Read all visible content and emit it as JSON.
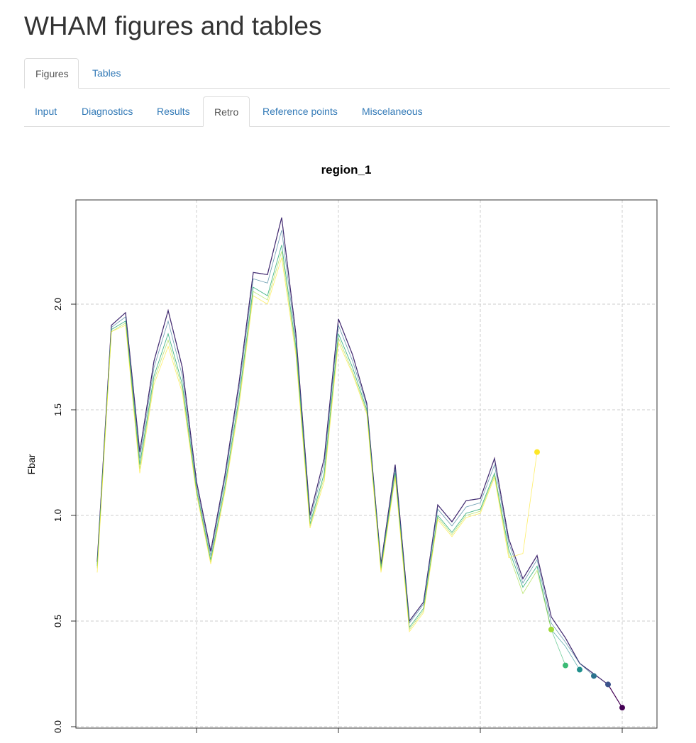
{
  "header": {
    "title": "WHAM figures and tables"
  },
  "tabs": [
    "Figures",
    "Tables"
  ],
  "subtabs": [
    "Input",
    "Diagnostics",
    "Results",
    "Retro",
    "Reference points",
    "Miscelaneous"
  ],
  "chart_data": {
    "type": "line",
    "title": "region_1",
    "ylabel": "Fbar",
    "categories": [
      null,
      null,
      null,
      null,
      null,
      null,
      null,
      null,
      null,
      null,
      null,
      null,
      null,
      null,
      null,
      null,
      null,
      null,
      null,
      null,
      null,
      null,
      null,
      null,
      null,
      null,
      null,
      null,
      null,
      null,
      null,
      null,
      null,
      null,
      null,
      null,
      null,
      null
    ],
    "ylim": [
      0,
      2.49
    ],
    "yticks": [
      {
        "value": 0,
        "label": "0.0"
      },
      0.5,
      {
        "value": 1,
        "label": "1.0"
      },
      1.5,
      {
        "value": 2,
        "label": "2.0"
      }
    ],
    "grid": true,
    "series": [
      {
        "color": "#440154",
        "values": [
          0.78,
          1.9,
          1.96,
          1.3,
          1.73,
          1.97,
          1.7,
          1.16,
          0.83,
          1.19,
          1.63,
          2.15,
          2.14,
          2.41,
          1.86,
          1.0,
          1.27,
          1.93,
          1.76,
          1.53,
          0.77,
          1.24,
          0.5,
          0.59,
          1.05,
          0.97,
          1.07,
          1.08,
          1.27,
          0.89,
          0.7,
          0.81,
          0.52,
          0.42,
          0.3,
          0.25,
          0.2,
          0.09
        ]
      },
      {
        "color": "#3b528b",
        "values": [
          0.78,
          1.9,
          1.96,
          1.3,
          1.73,
          1.97,
          1.7,
          1.16,
          0.83,
          1.19,
          1.63,
          2.15,
          2.14,
          2.41,
          1.86,
          1.0,
          1.27,
          1.93,
          1.76,
          1.53,
          0.77,
          1.24,
          0.5,
          0.59,
          1.05,
          0.97,
          1.07,
          1.08,
          1.27,
          0.89,
          0.7,
          0.81,
          0.52,
          0.42,
          0.3,
          0.25,
          0.2,
          null
        ]
      },
      {
        "color": "#2c728e",
        "values": [
          0.77,
          1.89,
          1.94,
          1.27,
          1.7,
          1.92,
          1.66,
          1.14,
          0.81,
          1.17,
          1.6,
          2.12,
          2.1,
          2.35,
          1.83,
          0.98,
          1.24,
          1.9,
          1.73,
          1.52,
          0.76,
          1.22,
          0.49,
          0.58,
          1.03,
          0.95,
          1.04,
          1.06,
          1.24,
          0.87,
          0.68,
          0.79,
          0.49,
          0.4,
          0.3,
          0.24,
          null,
          null
        ]
      },
      {
        "color": "#21908d",
        "values": [
          0.76,
          1.88,
          1.92,
          1.24,
          1.66,
          1.86,
          1.62,
          1.12,
          0.79,
          1.14,
          1.56,
          2.08,
          2.04,
          2.28,
          1.8,
          0.96,
          1.2,
          1.86,
          1.7,
          1.5,
          0.75,
          1.2,
          0.47,
          0.56,
          1.0,
          0.92,
          1.01,
          1.03,
          1.2,
          0.84,
          0.66,
          0.76,
          0.46,
          0.38,
          0.27,
          null,
          null,
          null
        ]
      },
      {
        "color": "#3bbb75",
        "values": [
          0.76,
          1.88,
          1.92,
          1.24,
          1.66,
          1.86,
          1.62,
          1.12,
          0.79,
          1.14,
          1.56,
          2.08,
          2.04,
          2.28,
          1.8,
          0.96,
          1.2,
          1.86,
          1.7,
          1.5,
          0.75,
          1.2,
          0.47,
          0.56,
          1.0,
          0.92,
          1.01,
          1.03,
          1.2,
          0.84,
          0.66,
          0.76,
          0.46,
          0.29,
          null,
          null,
          null,
          null
        ]
      },
      {
        "color": "#a0da39",
        "values": [
          0.75,
          1.87,
          1.91,
          1.22,
          1.64,
          1.83,
          1.6,
          1.11,
          0.78,
          1.12,
          1.54,
          2.06,
          2.02,
          2.25,
          1.78,
          0.95,
          1.18,
          1.84,
          1.68,
          1.49,
          0.74,
          1.19,
          0.46,
          0.55,
          0.99,
          0.91,
          1.0,
          1.02,
          1.19,
          0.82,
          0.63,
          0.74,
          0.46,
          null,
          null,
          null,
          null,
          null
        ]
      },
      {
        "color": "#fde725",
        "values": [
          0.73,
          1.87,
          1.9,
          1.2,
          1.62,
          1.8,
          1.58,
          1.1,
          0.77,
          1.11,
          1.52,
          2.04,
          2.0,
          2.22,
          1.76,
          0.94,
          1.16,
          1.82,
          1.67,
          1.48,
          0.73,
          1.18,
          0.45,
          0.54,
          0.98,
          0.9,
          0.99,
          1.01,
          1.18,
          0.8,
          0.82,
          1.3,
          null,
          null,
          null,
          null,
          null,
          null
        ]
      }
    ]
  }
}
